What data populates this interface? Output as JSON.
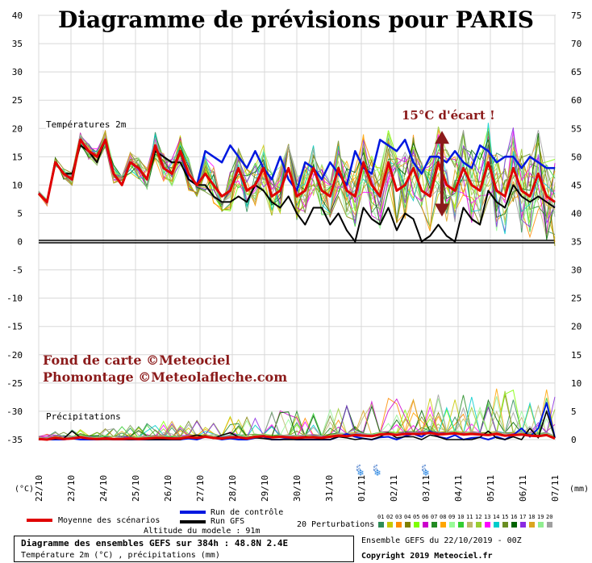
{
  "title": "Diagramme de prévisions pour PARIS",
  "credits": [
    "Fond de carte ©Meteociel",
    "Phomontage ©Meteolafleche.com"
  ],
  "annotation": "15°C d'écart !",
  "panel_labels": {
    "temp": "Températures 2m",
    "precip": "Précipitations"
  },
  "axis_units": {
    "left": "(°C)",
    "right": "(mm)"
  },
  "altitude": "Altitude du modele : 91m",
  "legend": {
    "mean": "Moyenne des scénarios",
    "control": "Run de contrôle",
    "gfs": "Run GFS",
    "perturbations": "20 Perturbations",
    "pert_numbers": [
      "01",
      "02",
      "03",
      "04",
      "05",
      "06",
      "07",
      "08",
      "09",
      "10",
      "11",
      "12",
      "13",
      "14",
      "15",
      "16",
      "17",
      "18",
      "19",
      "20"
    ]
  },
  "info": {
    "line1": "Diagramme des ensembles GEFS sur 384h : 48.8N 2.4E",
    "line2": "Température 2m (°C) , précipitations (mm)",
    "ensemble": "Ensemble GEFS du 22/10/2019 - 00Z",
    "copyright": "Copyright 2019 Meteociel.fr"
  },
  "snow_labels": [
    "5%",
    "5%",
    "5%"
  ],
  "colors": {
    "mean": "#e00000",
    "control": "#0018e0",
    "gfs": "#000000",
    "annotation": "#8b1a1a",
    "pert": [
      "#2e8b57",
      "#c8c800",
      "#ff8c00",
      "#808000",
      "#7fff00",
      "#cc00cc",
      "#228b22",
      "#ffa500",
      "#98fb98",
      "#32cd32",
      "#bdb76b",
      "#9acd32",
      "#ff00ff",
      "#00cccc",
      "#6b8e23",
      "#006400",
      "#8a2be2",
      "#daa520",
      "#90ee90",
      "#a0a0a0"
    ]
  },
  "chart_data": {
    "type": "line",
    "x": [
      "22/10",
      "23/10",
      "24/10",
      "25/10",
      "26/10",
      "27/10",
      "28/10",
      "29/10",
      "30/10",
      "31/10",
      "01/11",
      "02/11",
      "03/11",
      "04/11",
      "05/11",
      "06/11",
      "07/11"
    ],
    "temp_axis": {
      "label": "(°C)",
      "ylim": [
        -35,
        40
      ],
      "ticks": [
        40,
        35,
        30,
        25,
        20,
        15,
        10,
        5,
        0,
        -5,
        -10,
        -15,
        -20,
        -25,
        -30,
        -35
      ]
    },
    "precip_axis": {
      "label": "(mm)",
      "ylim": [
        0,
        75
      ],
      "ticks": [
        75,
        70,
        65,
        60,
        55,
        50,
        45,
        40,
        35,
        30,
        25,
        20,
        15,
        10,
        5,
        0
      ]
    },
    "temperature": {
      "mean": [
        8.5,
        7,
        14,
        12,
        11,
        18,
        16,
        15,
        18,
        12,
        10,
        14,
        13,
        11,
        17,
        13,
        12,
        16,
        12,
        10,
        12,
        10,
        8,
        9,
        13,
        9,
        10,
        13,
        8,
        9,
        13,
        8,
        9,
        13,
        9,
        8,
        13,
        9,
        8,
        14,
        10,
        8,
        14,
        9,
        10,
        13,
        9,
        8,
        14,
        10,
        9,
        13,
        10,
        9,
        14,
        9,
        8,
        13,
        9,
        8,
        12,
        8,
        7
      ],
      "control": [
        8.5,
        7,
        14,
        12,
        11,
        18,
        16,
        15,
        18,
        12,
        10,
        14,
        13,
        11,
        17,
        13,
        12,
        16,
        11,
        10,
        16,
        15,
        14,
        17,
        15,
        13,
        16,
        13,
        11,
        15,
        11,
        9,
        14,
        13,
        11,
        14,
        12,
        10,
        16,
        13,
        12,
        18,
        17,
        16,
        18,
        14,
        12,
        15,
        15,
        14,
        16,
        14,
        13,
        17,
        16,
        14,
        15,
        15,
        13,
        15,
        14,
        13,
        13
      ],
      "gfs": [
        8.5,
        7,
        14,
        12,
        12,
        17,
        16,
        14,
        18,
        12,
        10,
        14,
        13,
        11,
        16,
        15,
        14,
        14,
        11,
        10,
        10,
        8,
        7,
        7,
        8,
        7,
        10,
        9,
        7,
        6,
        8,
        5,
        3,
        6,
        6,
        3,
        5,
        2,
        0,
        6,
        4,
        3,
        6,
        2,
        5,
        4,
        0,
        1,
        3,
        1,
        0,
        6,
        4,
        3,
        9,
        7,
        6,
        10,
        8,
        7,
        8,
        7,
        6
      ]
    },
    "precipitation": {
      "mean": [
        0.1,
        0,
        0.3,
        0.1,
        0.2,
        0.4,
        0.2,
        0.1,
        0.2,
        0.1,
        0.1,
        0.2,
        0.1,
        0.2,
        0.3,
        0.3,
        0.2,
        0.2,
        0.4,
        0.3,
        0.5,
        0.3,
        0.2,
        0.4,
        0.4,
        0.2,
        0.5,
        0.6,
        0.4,
        0.5,
        0.4,
        0.3,
        0.4,
        0.4,
        0.3,
        0.5,
        0.7,
        0.6,
        0.8,
        0.7,
        0.6,
        0.9,
        1,
        0.8,
        1,
        1,
        1,
        1.2,
        0.9,
        1,
        1.1,
        0.9,
        1,
        0.9,
        0.8,
        1,
        0.7,
        0.8,
        0.9,
        0.7,
        0.6,
        0.8,
        0.2
      ],
      "control": [
        0,
        0,
        0,
        0,
        0.2,
        0,
        0,
        0,
        0.1,
        0,
        0,
        0,
        0,
        0,
        0,
        0,
        0,
        0,
        0.2,
        0,
        0.5,
        0.3,
        0,
        0.2,
        0,
        0,
        0.3,
        0.5,
        0,
        0,
        0.2,
        0,
        0,
        0,
        0,
        0,
        0.5,
        1,
        0.5,
        0.2,
        0,
        0.4,
        0.5,
        0,
        0.6,
        1,
        0.5,
        1.5,
        0.5,
        0.2,
        0.8,
        0,
        0.3,
        0.4,
        0,
        0.5,
        0,
        0.8,
        2,
        0.5,
        2,
        6.5,
        0.3
      ],
      "gfs": [
        0,
        0,
        0.1,
        0.2,
        1.5,
        0.4,
        0.1,
        0,
        0,
        0,
        0,
        0,
        0,
        0,
        0,
        0,
        0,
        0,
        0.5,
        0.8,
        0.5,
        0.2,
        0.8,
        1.2,
        0.5,
        0.3,
        0.3,
        0.2,
        0,
        0,
        0,
        0,
        0,
        0,
        0,
        0,
        0.5,
        0.3,
        0,
        0.2,
        0,
        0.5,
        1.2,
        0.3,
        0.5,
        0.5,
        0,
        0.8,
        0.5,
        0,
        0,
        0,
        0,
        0.4,
        1.5,
        0.3,
        0,
        0.5,
        0,
        2,
        0.3,
        5,
        0.3
      ]
    },
    "perturbation_peaks": {
      "temp_max": 21,
      "temp_min": -2.5,
      "precip_max": 12
    }
  }
}
